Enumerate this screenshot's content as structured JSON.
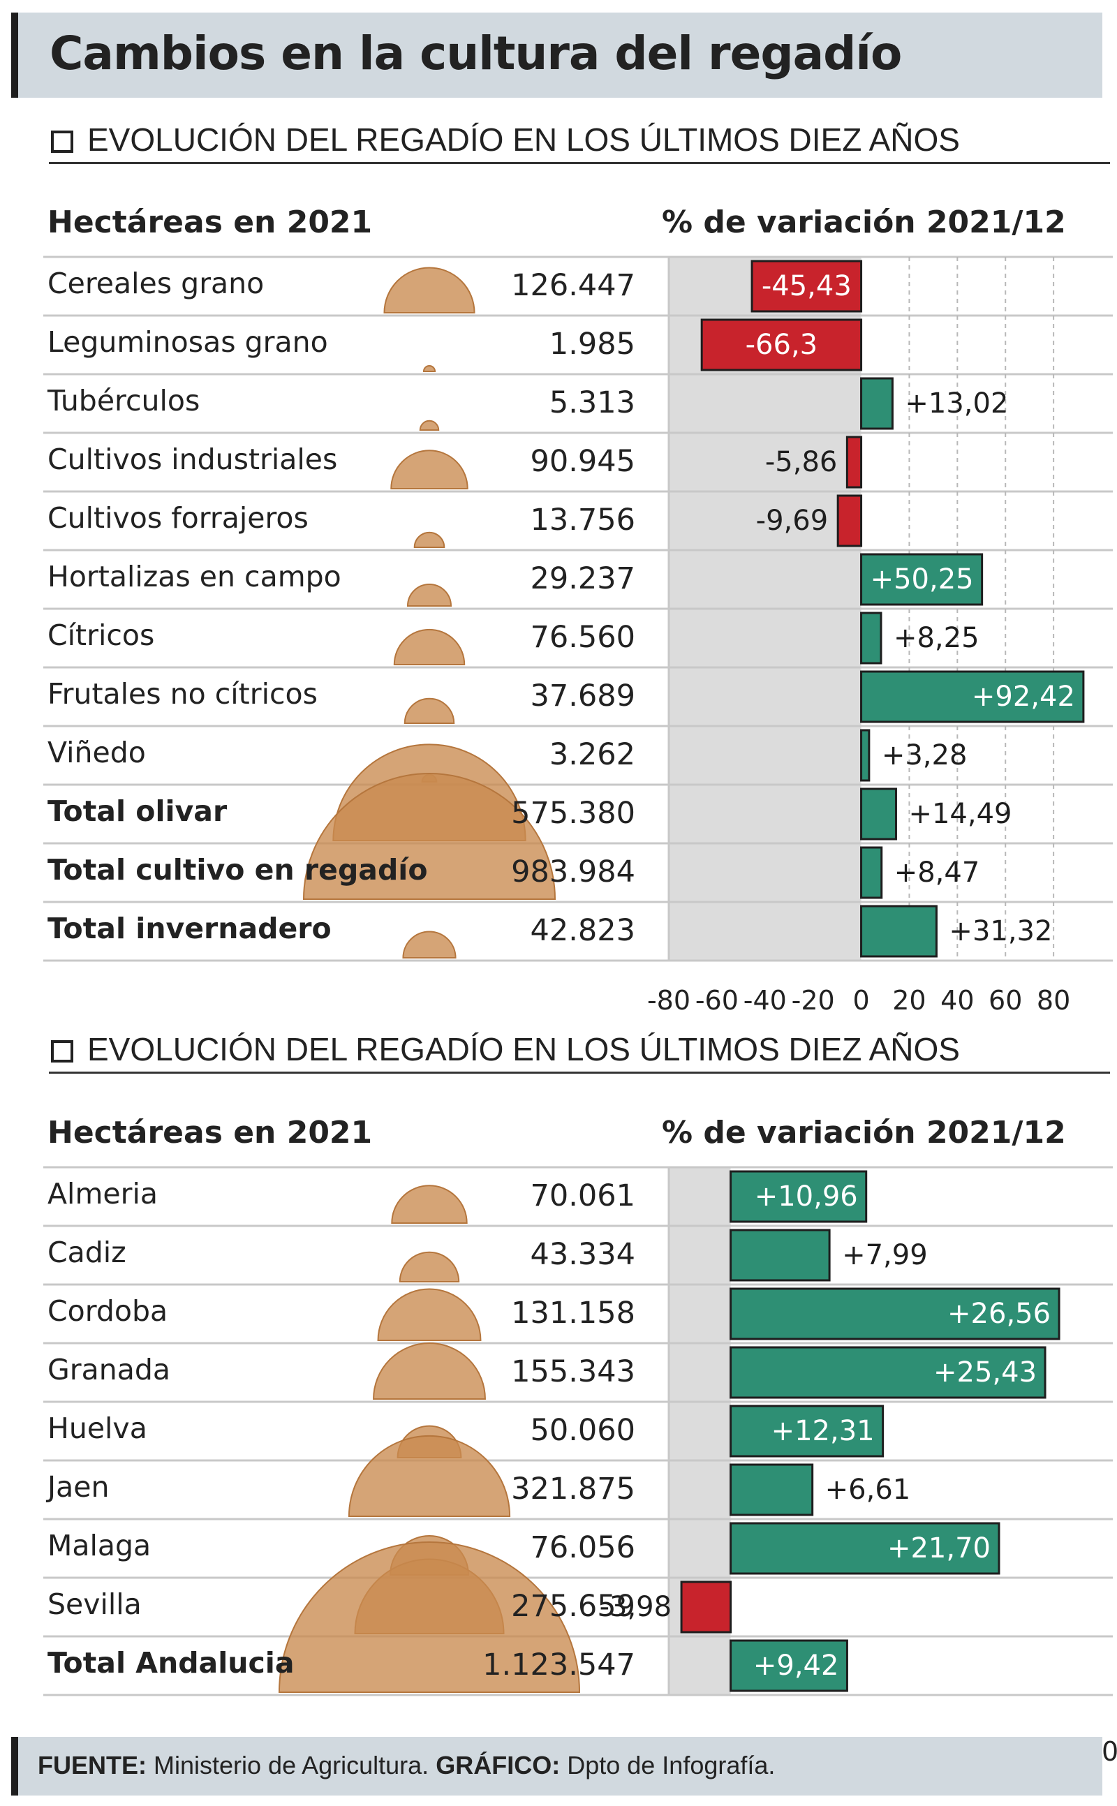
{
  "title": "Cambios en la cultura del regadío",
  "footer": {
    "source_label": "FUENTE:",
    "source_value": "Ministerio de Agricultura.",
    "graphic_label": "GRÁFICO:",
    "graphic_value": "Dpto de Infografía."
  },
  "colors": {
    "positive": "#2e8f74",
    "negative": "#c8232c",
    "bubble": "#c98a4f",
    "panel_bg": "#dcdcdc",
    "header_bg": "#d1d9df"
  },
  "chart_data": [
    {
      "type": "bar",
      "section_title": "EVOLUCIÓN DEL REGADÍO EN LOS ÚLTIMOS DIEZ AÑOS",
      "left_header": "Hectáreas en 2021",
      "right_header": "% de variación 2021/12",
      "categories": [
        "Cereales grano",
        "Leguminosas grano",
        "Tubérculos",
        "Cultivos industriales",
        "Cultivos forrajeros",
        "Hortalizas en campo",
        "Cítricos",
        "Frutales no cítricos",
        "Viñedo",
        "Total olivar",
        "Total cultivo en regadío",
        "Total invernadero"
      ],
      "bold_rows": [
        9,
        10,
        11
      ],
      "hectares": [
        126447,
        1985,
        5313,
        90945,
        13756,
        29237,
        76560,
        37689,
        3262,
        575380,
        983984,
        42823
      ],
      "hectares_labels": [
        "126.447",
        "1.985",
        "5.313",
        "90.945",
        "13.756",
        "29.237",
        "76.560",
        "37.689",
        "3.262",
        "575.380",
        "983.984",
        "42.823"
      ],
      "values": [
        -45.43,
        -66.3,
        13.02,
        -5.86,
        -9.69,
        50.25,
        8.25,
        92.42,
        3.28,
        14.49,
        8.47,
        31.32
      ],
      "value_labels": [
        "-45,43",
        "-66,3",
        "+13,02",
        "-5,86",
        "-9,69",
        "+50,25",
        "+8,25",
        "+92,42",
        "+3,28",
        "+14,49",
        "+8,47",
        "+31,32"
      ],
      "xlim": [
        -80,
        100
      ],
      "xticks": [
        -80,
        -60,
        -40,
        -20,
        0,
        20,
        40,
        60,
        80
      ],
      "xtick_labels": [
        "-80",
        "-60",
        "-40",
        "-20",
        "0",
        "20",
        "40",
        "60",
        "80"
      ],
      "grid": true
    },
    {
      "type": "bar",
      "section_title": "EVOLUCIÓN DEL REGADÍO EN LOS ÚLTIMOS DIEZ AÑOS",
      "left_header": "Hectáreas en 2021",
      "right_header": "% de variación 2021/12",
      "categories": [
        "Almeria",
        "Cadiz",
        "Cordoba",
        "Granada",
        "Huelva",
        "Jaen",
        "Malaga",
        "Sevilla",
        "Total Andalucia"
      ],
      "bold_rows": [
        8
      ],
      "hectares": [
        70061,
        43334,
        131158,
        155343,
        50060,
        321875,
        76056,
        275659,
        1123547
      ],
      "hectares_labels": [
        "70.061",
        "43.334",
        "131.158",
        "155.343",
        "50.060",
        "321.875",
        "76.056",
        "275.659",
        "1.123.547"
      ],
      "values": [
        10.96,
        7.99,
        26.56,
        25.43,
        12.31,
        6.61,
        21.7,
        -3.98,
        9.42
      ],
      "value_labels": [
        "+10,96",
        "+7,99",
        "+26,56",
        "+25,43",
        "+12,31",
        "+6,61",
        "+21,70",
        "-3,98",
        "+9,42"
      ],
      "xlim": [
        -5,
        30
      ],
      "xticks": [
        -5,
        0,
        5,
        10,
        15,
        20,
        25,
        30
      ],
      "xtick_labels": [
        "-5",
        "0",
        "5",
        "10",
        "15",
        "20",
        "25",
        "30"
      ],
      "grid": false
    }
  ]
}
